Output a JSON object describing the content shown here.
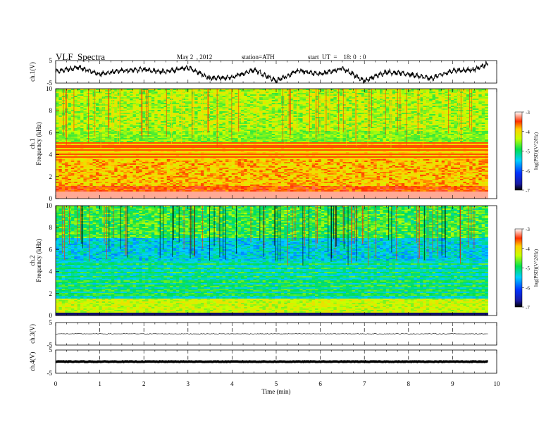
{
  "header": {
    "title": "VLF  Spectra",
    "date": "May 2  , 2012",
    "station": "station=ATH",
    "start": "start  UT  =    18: 0  : 0"
  },
  "chart_data": [
    {
      "type": "line",
      "panel": "ch1-waveform",
      "ylabel": "ch.1(V)",
      "yticks": [
        "5",
        "-5"
      ],
      "ylim": [
        -5,
        5
      ],
      "xlim": [
        0,
        10
      ],
      "x_end": 9.8,
      "x": [
        0,
        0.5,
        1,
        1.5,
        2,
        2.5,
        3,
        3.5,
        4,
        4.5,
        5,
        5.5,
        6,
        6.5,
        7,
        7.5,
        8,
        8.5,
        9,
        9.5,
        9.8
      ],
      "y": [
        0,
        2,
        -1,
        0.5,
        1,
        0,
        2,
        -3,
        -2.5,
        1,
        -4,
        0.5,
        -1,
        1.5,
        -4,
        0,
        -1,
        -3,
        0.5,
        1,
        3.5
      ]
    },
    {
      "type": "heatmap",
      "panel": "ch1-spectrogram",
      "ylabel": "Frequency (kHz)",
      "channel_label": "ch.1",
      "yticks": [
        "0",
        "2",
        "4",
        "6",
        "8",
        "10"
      ],
      "ylim": [
        0,
        10
      ],
      "xlim": [
        0,
        10
      ],
      "colorbar": {
        "label": "log(PSD)(V^2/Hz)",
        "ticks": [
          "-3",
          "-4",
          "-5",
          "-6",
          "-7"
        ],
        "range": [
          -7,
          -3
        ]
      }
    },
    {
      "type": "heatmap",
      "panel": "ch2-spectrogram",
      "ylabel": "Frequency (kHz)",
      "channel_label": "ch.2",
      "yticks": [
        "0",
        "2",
        "4",
        "6",
        "8",
        "10"
      ],
      "ylim": [
        0,
        10
      ],
      "xlim": [
        0,
        10
      ],
      "colorbar": {
        "label": "log(PSD)(V^2/Hz)",
        "ticks": [
          "-3",
          "-4",
          "-5",
          "-6",
          "-7"
        ],
        "range": [
          -7,
          -3
        ]
      }
    },
    {
      "type": "line",
      "panel": "ch3-waveform",
      "ylabel": "ch.3(V)",
      "yticks": [
        "5",
        "-5"
      ],
      "ylim": [
        -5,
        5
      ],
      "xlim": [
        0,
        10
      ],
      "x_end": 9.8,
      "x": [
        0,
        9.8
      ],
      "y": [
        0,
        0
      ]
    },
    {
      "type": "line",
      "panel": "ch4-waveform",
      "ylabel": "ch.4(V)",
      "yticks": [
        "5",
        "-5"
      ],
      "ylim": [
        -5,
        5
      ],
      "xlim": [
        0,
        10
      ],
      "x_end": 9.8,
      "x": [
        0,
        9.8
      ],
      "y": [
        0,
        0
      ]
    }
  ],
  "xaxis": {
    "label": "Time  (min)",
    "ticks": [
      "0",
      "1",
      "2",
      "3",
      "4",
      "5",
      "6",
      "7",
      "8",
      "9",
      "10"
    ]
  }
}
